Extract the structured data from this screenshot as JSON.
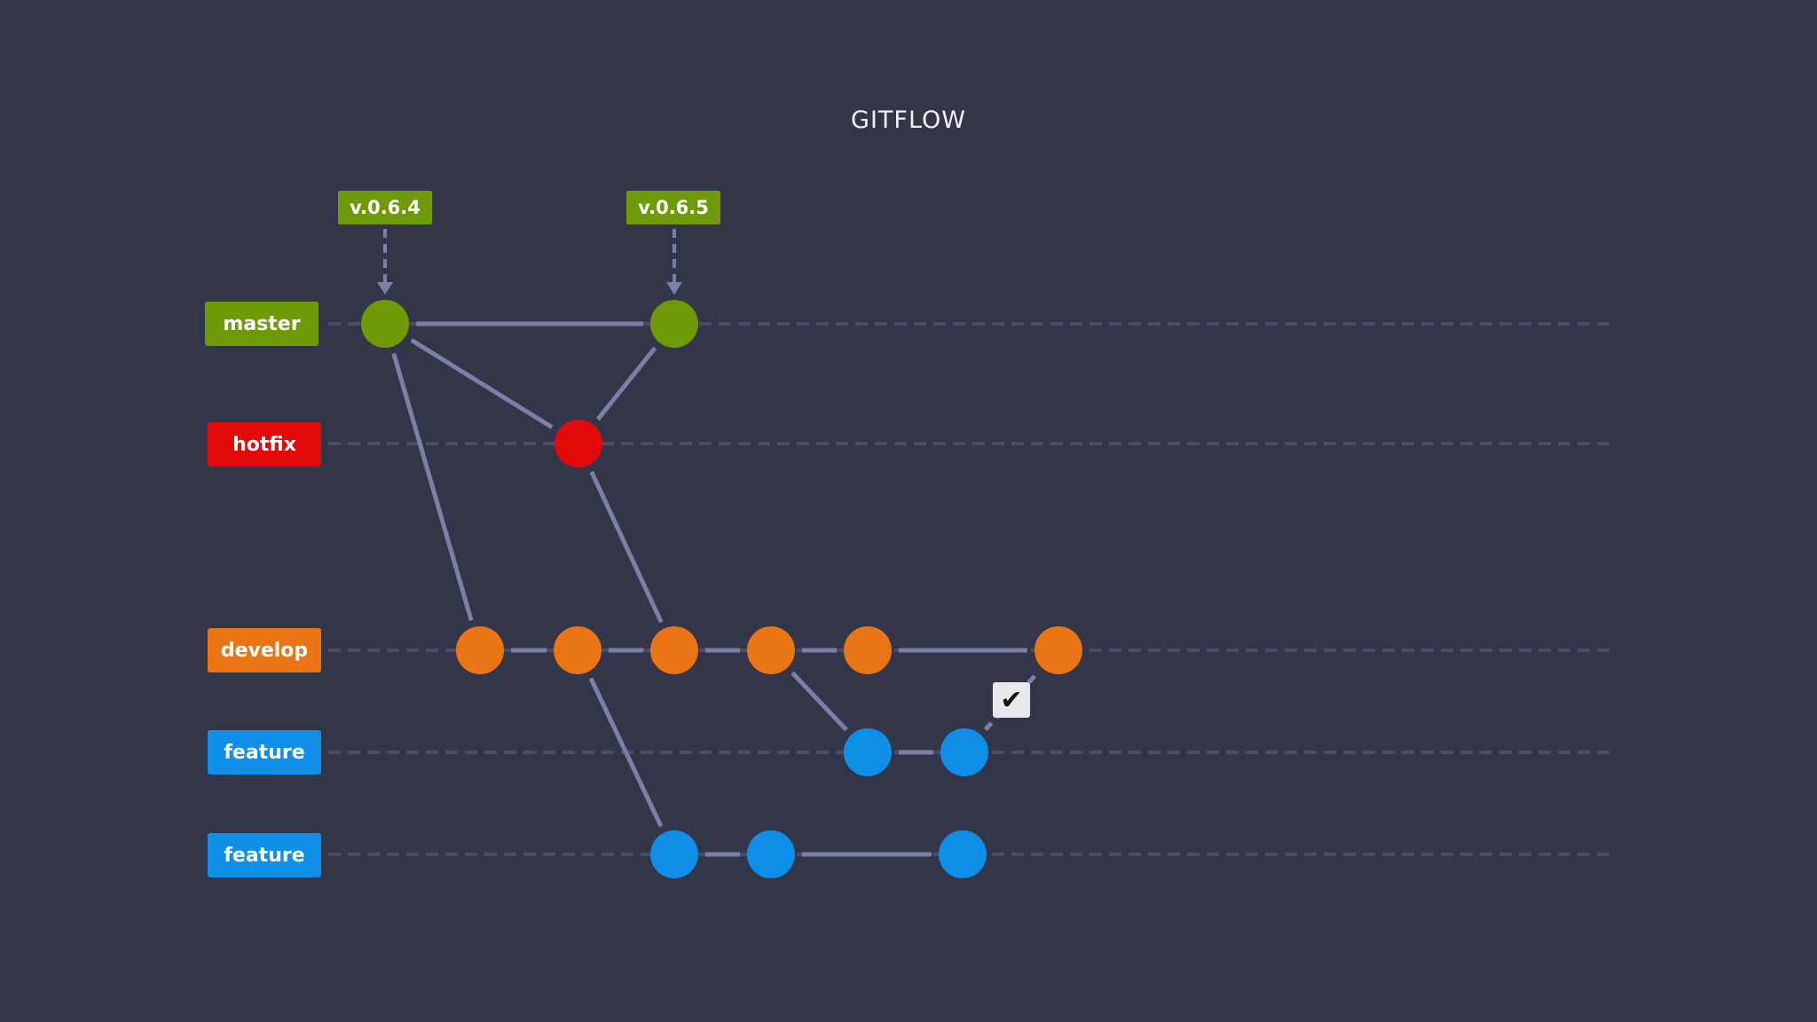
{
  "diagram": {
    "title": "GITFLOW",
    "colors": {
      "background": "#333549",
      "line": "#7b80a6",
      "master": "#6f9a08",
      "hotfix": "#e30a0a",
      "develop": "#e97514",
      "feature": "#0f8fe8"
    },
    "branches": [
      {
        "id": "master",
        "label": "master",
        "color": "#6f9a08"
      },
      {
        "id": "hotfix",
        "label": "hotfix",
        "color": "#e30a0a"
      },
      {
        "id": "develop",
        "label": "develop",
        "color": "#e97514"
      },
      {
        "id": "feature1",
        "label": "feature",
        "color": "#0f8fe8"
      },
      {
        "id": "feature2",
        "label": "feature",
        "color": "#0f8fe8"
      }
    ],
    "tags": [
      {
        "label": "v.0.6.4",
        "target": "m1"
      },
      {
        "label": "v.0.6.5",
        "target": "m2"
      }
    ],
    "merge_check_icon": "checkmark-icon"
  }
}
